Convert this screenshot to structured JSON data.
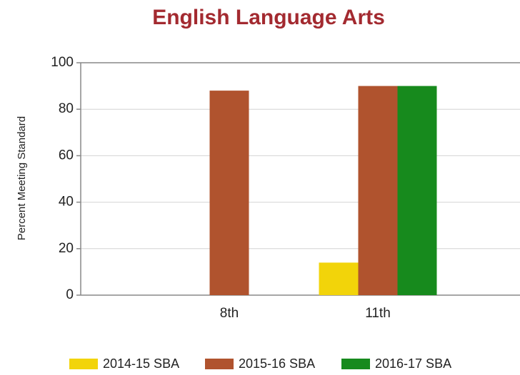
{
  "chart_data": {
    "type": "bar",
    "title": "English Language Arts",
    "y_label": "Percent Meeting Standard",
    "categories": [
      "8th",
      "11th"
    ],
    "series": [
      {
        "name": "2014-15 SBA",
        "color": "#f2d40a",
        "values": [
          null,
          14
        ]
      },
      {
        "name": "2015-16 SBA",
        "color": "#b0532e",
        "values": [
          88,
          90
        ]
      },
      {
        "name": "2016-17 SBA",
        "color": "#178a1d",
        "values": [
          null,
          90
        ]
      }
    ],
    "ylim": [
      0,
      100
    ],
    "yticks": [
      0,
      20,
      40,
      60,
      80,
      100
    ],
    "grid": true,
    "legend": "bottom"
  }
}
